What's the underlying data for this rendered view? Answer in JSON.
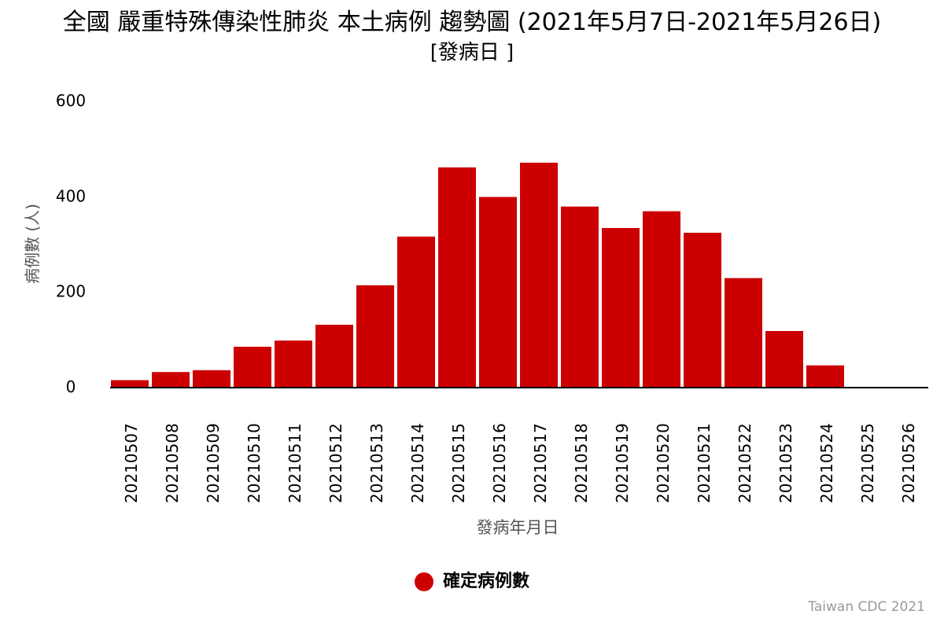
{
  "colors": {
    "bar": "#cc0000",
    "axis_text": "#000000",
    "axis_title": "#555555",
    "credit": "#999999"
  },
  "chart_data": {
    "type": "bar",
    "title": "全國 嚴重特殊傳染性肺炎 本土病例 趨勢圖 (2021年5月7日-2021年5月26日)",
    "subtitle": "[發病日 ]",
    "xlabel": "發病年月日",
    "ylabel": "病例數 (人)",
    "categories": [
      "20210507",
      "20210508",
      "20210509",
      "20210510",
      "20210511",
      "20210512",
      "20210513",
      "20210514",
      "20210515",
      "20210516",
      "20210517",
      "20210518",
      "20210519",
      "20210520",
      "20210521",
      "20210522",
      "20210523",
      "20210524",
      "20210525",
      "20210526"
    ],
    "series": [
      {
        "name": "確定病例數",
        "values": [
          14,
          31,
          35,
          84,
          97,
          130,
          213,
          315,
          460,
          398,
          470,
          378,
          333,
          368,
          323,
          228,
          117,
          45,
          0,
          0
        ]
      }
    ],
    "ylim": [
      0,
      600
    ],
    "yticks": [
      0,
      200,
      400,
      600
    ],
    "grid": false,
    "legend_position": "bottom-center"
  },
  "credit": "Taiwan CDC 2021"
}
